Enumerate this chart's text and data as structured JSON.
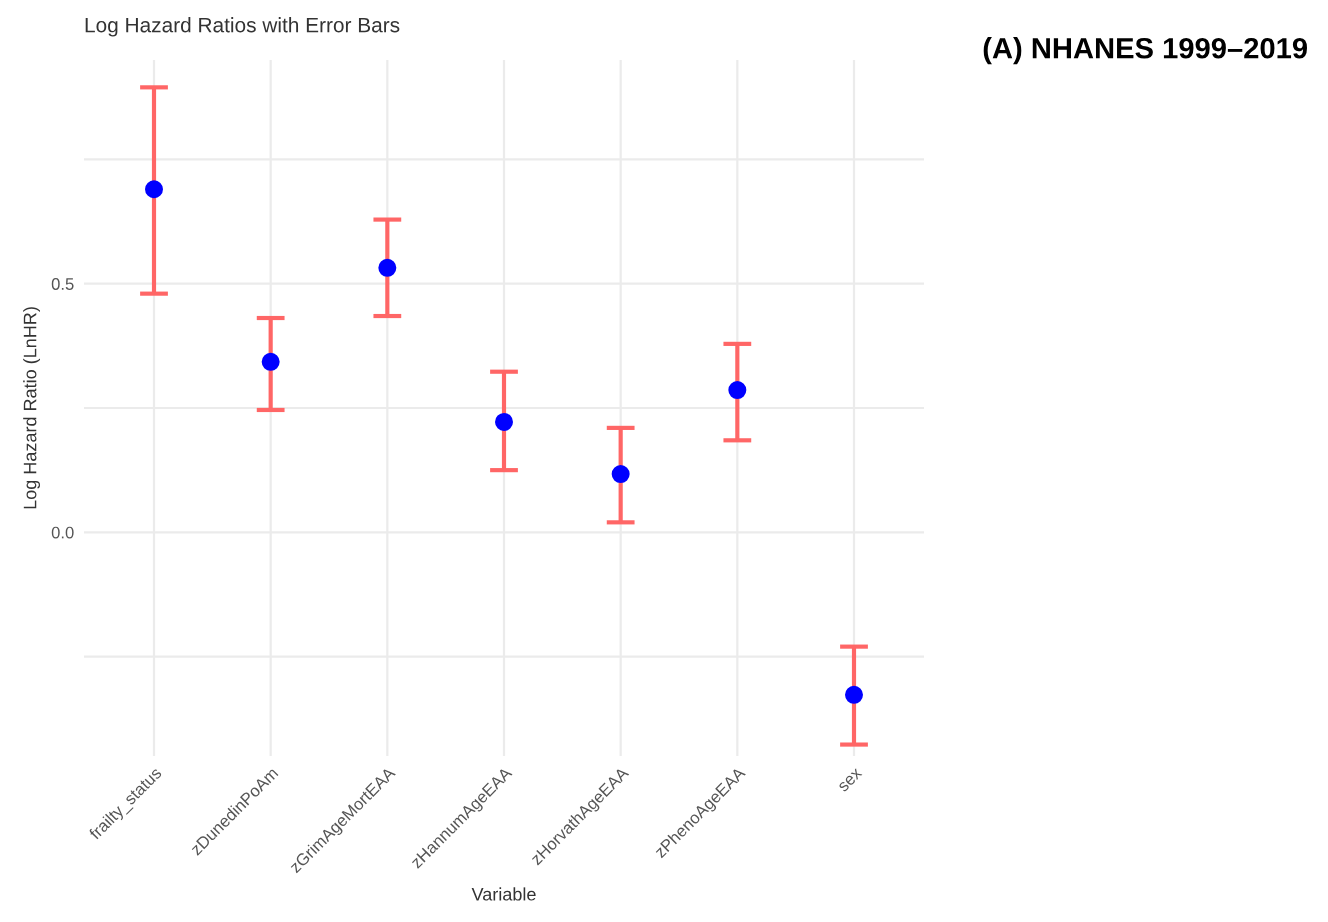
{
  "chart_data": {
    "type": "scatter",
    "title": "Log Hazard Ratios with Error Bars",
    "xlabel": "Variable",
    "ylabel": "Log Hazard Ratio (LnHR)",
    "annotations": [
      "(A) NHANES 1999–2019"
    ],
    "categories": [
      "frailty_status",
      "zDunedinPoAm",
      "zGrimAgeMortEAA",
      "zHannumAgeEAA",
      "zHorvathAgeEAA",
      "zPhenoAgeEAA",
      "sex"
    ],
    "series": [
      {
        "color": "#ff6666",
        "colors": [
          "#0000ff",
          "#0000ff",
          "#0000ff",
          "#0000ff",
          "#0000ff",
          "#0000ff",
          "#0000ff"
        ],
        "values": [
          0.69,
          0.343,
          0.532,
          0.222,
          0.117,
          0.286,
          -0.327
        ],
        "errors": [
          [
            0.48,
            0.895
          ],
          [
            0.246,
            0.431
          ],
          [
            0.435,
            0.629
          ],
          [
            0.125,
            0.323
          ],
          [
            0.02,
            0.21
          ],
          [
            0.185,
            0.379
          ],
          [
            -0.427,
            -0.23
          ]
        ]
      }
    ],
    "ylim": [
      -0.45,
      0.95
    ],
    "yticks": [
      {
        "value": -0.25,
        "label": null
      },
      {
        "value": 0,
        "label": "0.0"
      },
      {
        "value": 0.25,
        "label": null
      },
      0.5,
      {
        "value": 0.75,
        "label": null
      }
    ],
    "grid": true,
    "marker": "circle"
  }
}
